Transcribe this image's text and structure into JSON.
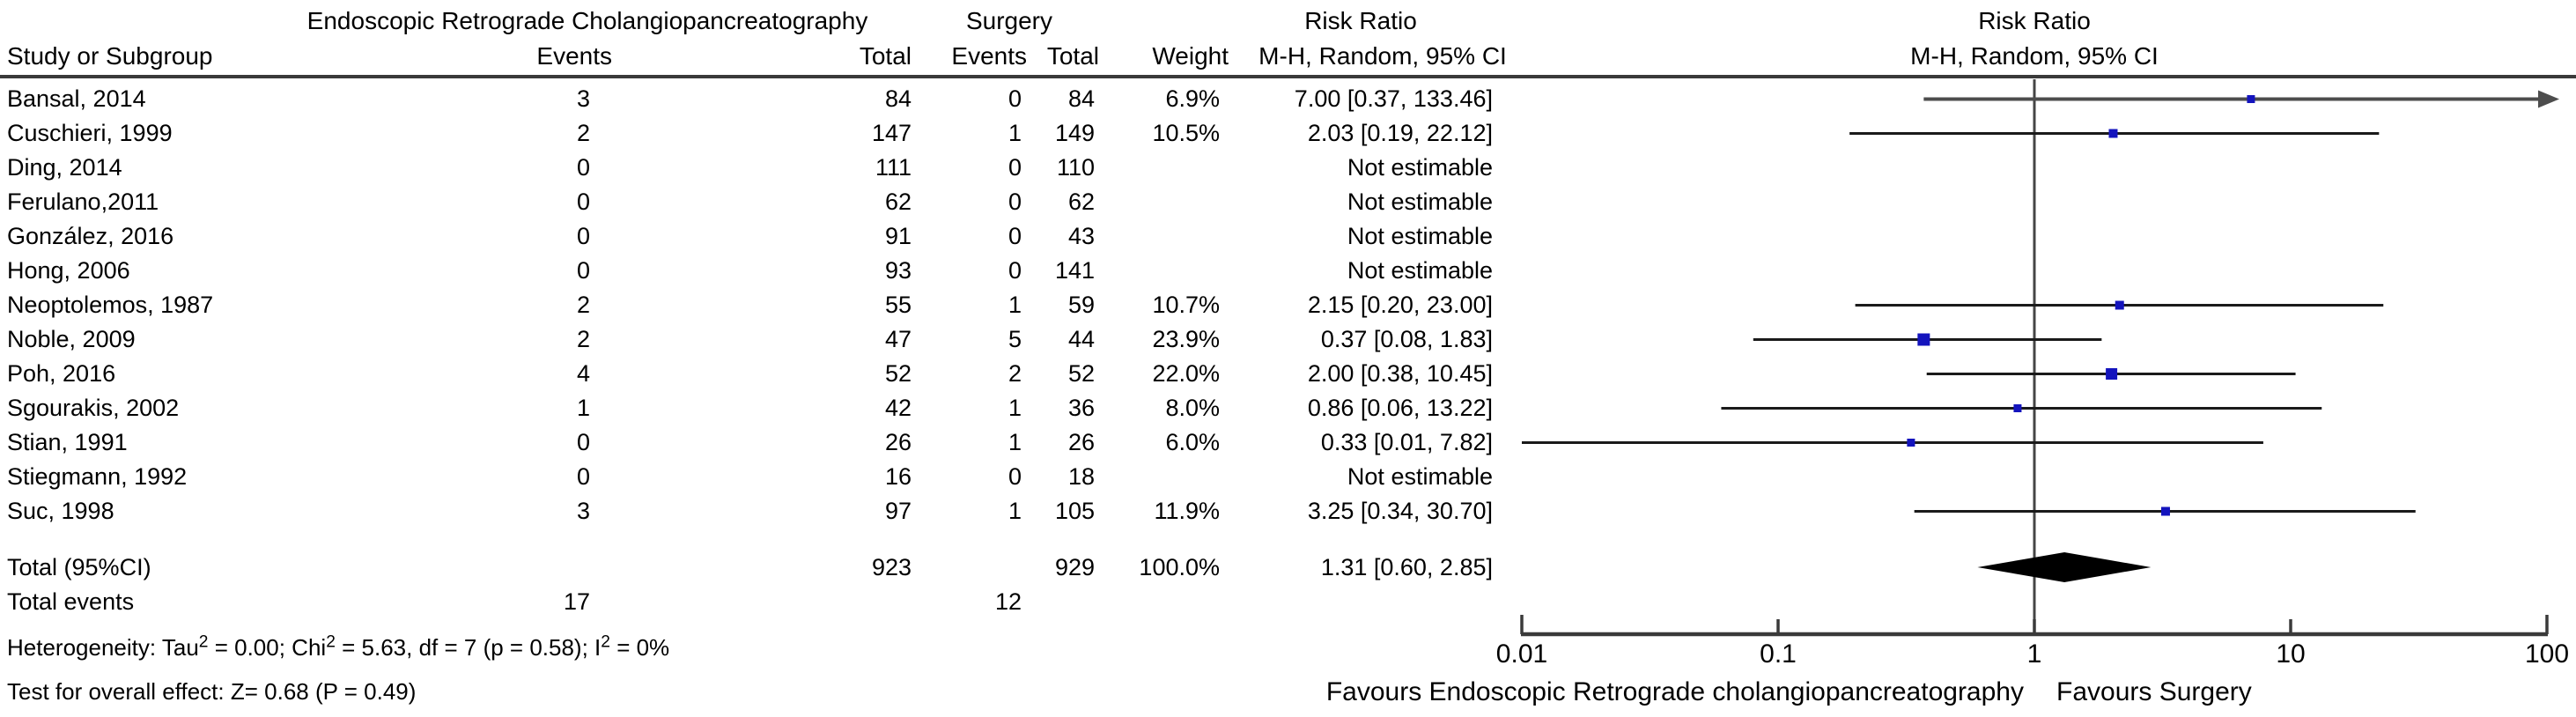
{
  "header": {
    "group1_title": "Endoscopic Retrograde Cholangiopancreatography",
    "group2_title": "Surgery",
    "risk_ratio_title_left": "Risk Ratio",
    "risk_ratio_title_right": "Risk Ratio",
    "col_study": "Study or Subgroup",
    "col_events_1": "Events",
    "col_total_1": "Total",
    "col_events_2": "Events",
    "col_total_2": "Total",
    "col_weight": "Weight",
    "col_mh_left": "M-H, Random, 95% CI",
    "col_mh_right": "M-H, Random, 95% CI"
  },
  "rows": [
    {
      "study": "Bansal, 2014",
      "e_events": "3",
      "e_total": "84",
      "s_events": "0",
      "s_total": "84",
      "weight": "6.9%",
      "rr": "7.00 [0.37, 133.46]"
    },
    {
      "study": "Cuschieri, 1999",
      "e_events": "2",
      "e_total": "147",
      "s_events": "1",
      "s_total": "149",
      "weight": "10.5%",
      "rr": "2.03 [0.19, 22.12]"
    },
    {
      "study": "Ding, 2014",
      "e_events": "0",
      "e_total": "111",
      "s_events": "0",
      "s_total": "110",
      "weight": "",
      "rr": "Not estimable"
    },
    {
      "study": "Ferulano,2011",
      "e_events": "0",
      "e_total": "62",
      "s_events": "0",
      "s_total": "62",
      "weight": "",
      "rr": "Not estimable"
    },
    {
      "study": "González, 2016",
      "e_events": "0",
      "e_total": "91",
      "s_events": "0",
      "s_total": "43",
      "weight": "",
      "rr": "Not estimable"
    },
    {
      "study": "Hong, 2006",
      "e_events": "0",
      "e_total": "93",
      "s_events": "0",
      "s_total": "141",
      "weight": "",
      "rr": "Not estimable"
    },
    {
      "study": "Neoptolemos, 1987",
      "e_events": "2",
      "e_total": "55",
      "s_events": "1",
      "s_total": "59",
      "weight": "10.7%",
      "rr": "2.15 [0.20, 23.00]"
    },
    {
      "study": "Noble, 2009",
      "e_events": "2",
      "e_total": "47",
      "s_events": "5",
      "s_total": "44",
      "weight": "23.9%",
      "rr": "0.37 [0.08, 1.83]"
    },
    {
      "study": "Poh, 2016",
      "e_events": "4",
      "e_total": "52",
      "s_events": "2",
      "s_total": "52",
      "weight": "22.0%",
      "rr": "2.00 [0.38, 10.45]"
    },
    {
      "study": "Sgourakis, 2002",
      "e_events": "1",
      "e_total": "42",
      "s_events": "1",
      "s_total": "36",
      "weight": "8.0%",
      "rr": "0.86 [0.06, 13.22]"
    },
    {
      "study": "Stian, 1991",
      "e_events": "0",
      "e_total": "26",
      "s_events": "1",
      "s_total": "26",
      "weight": "6.0%",
      "rr": "0.33 [0.01, 7.82]"
    },
    {
      "study": "Stiegmann, 1992",
      "e_events": "0",
      "e_total": "16",
      "s_events": "0",
      "s_total": "18",
      "weight": "",
      "rr": "Not estimable"
    },
    {
      "study": "Suc, 1998",
      "e_events": "3",
      "e_total": "97",
      "s_events": "1",
      "s_total": "105",
      "weight": "11.9%",
      "rr": "3.25 [0.34, 30.70]"
    }
  ],
  "totals": {
    "label": "Total (95%CI)",
    "total1": "923",
    "total2": "929",
    "weight": "100.0%",
    "rr": "1.31 [0.60, 2.85]",
    "events_label": "Total events",
    "events1": "17",
    "events2": "12"
  },
  "stats": {
    "het_t1": "Heterogeneity: Tau",
    "het_s1": "2",
    "het_t2": " = 0.00; Chi",
    "het_s2": "2",
    "het_t3": " = 5.63, df = 7 (p = 0.58); I",
    "het_s3": "2",
    "het_t4": " = 0%",
    "test": "Test for overall effect: Z= 0.68 (P = 0.49)"
  },
  "plot": {
    "tick_labels": [
      "0.01",
      "0.1",
      "1",
      "10",
      "100"
    ],
    "favours_left": "Favours Endoscopic Retrograde cholangiopancreatography",
    "favours_right": "Favours Surgery"
  },
  "chart_data": {
    "type": "scatter",
    "subtype": "forest_plot_meta_analysis",
    "title": "Risk Ratio, M-H, Random, 95% CI — ERCP vs Surgery",
    "x_scale": "log10",
    "x_ticks": [
      0.01,
      0.1,
      1,
      10,
      100
    ],
    "x_range": [
      0.01,
      100
    ],
    "studies": [
      {
        "study": "Bansal, 2014",
        "rr": 7.0,
        "ci_low": 0.37,
        "ci_high": 133.46,
        "weight_pct": 6.9
      },
      {
        "study": "Cuschieri, 1999",
        "rr": 2.03,
        "ci_low": 0.19,
        "ci_high": 22.12,
        "weight_pct": 10.5
      },
      {
        "study": "Ding, 2014",
        "rr": null,
        "ci_low": null,
        "ci_high": null,
        "weight_pct": null
      },
      {
        "study": "Ferulano,2011",
        "rr": null,
        "ci_low": null,
        "ci_high": null,
        "weight_pct": null
      },
      {
        "study": "González, 2016",
        "rr": null,
        "ci_low": null,
        "ci_high": null,
        "weight_pct": null
      },
      {
        "study": "Hong, 2006",
        "rr": null,
        "ci_low": null,
        "ci_high": null,
        "weight_pct": null
      },
      {
        "study": "Neoptolemos, 1987",
        "rr": 2.15,
        "ci_low": 0.2,
        "ci_high": 23.0,
        "weight_pct": 10.7
      },
      {
        "study": "Noble, 2009",
        "rr": 0.37,
        "ci_low": 0.08,
        "ci_high": 1.83,
        "weight_pct": 23.9
      },
      {
        "study": "Poh, 2016",
        "rr": 2.0,
        "ci_low": 0.38,
        "ci_high": 10.45,
        "weight_pct": 22.0
      },
      {
        "study": "Sgourakis, 2002",
        "rr": 0.86,
        "ci_low": 0.06,
        "ci_high": 13.22,
        "weight_pct": 8.0
      },
      {
        "study": "Stian, 1991",
        "rr": 0.33,
        "ci_low": 0.01,
        "ci_high": 7.82,
        "weight_pct": 6.0
      },
      {
        "study": "Stiegmann, 1992",
        "rr": null,
        "ci_low": null,
        "ci_high": null,
        "weight_pct": null
      },
      {
        "study": "Suc, 1998",
        "rr": 3.25,
        "ci_low": 0.34,
        "ci_high": 30.7,
        "weight_pct": 11.9
      }
    ],
    "total": {
      "label": "Total (95%CI)",
      "rr": 1.31,
      "ci_low": 0.6,
      "ci_high": 2.85,
      "weight_pct": 100.0
    },
    "heterogeneity": {
      "tau2": 0.0,
      "chi2": 5.63,
      "df": 7,
      "p": 0.58,
      "i2_pct": 0
    },
    "overall_effect": {
      "z": 0.68,
      "p": 0.49
    },
    "colors": {
      "point_square": "#1414bd",
      "ci_line": "#1a1a1a",
      "arrow_line": "#4d4d4d",
      "diamond": "#000000",
      "axis": "#3a3a3a",
      "center_line": "#454545"
    },
    "legend_left": "Favours Endoscopic Retrograde cholangiopancreatography",
    "legend_right": "Favours Surgery"
  }
}
